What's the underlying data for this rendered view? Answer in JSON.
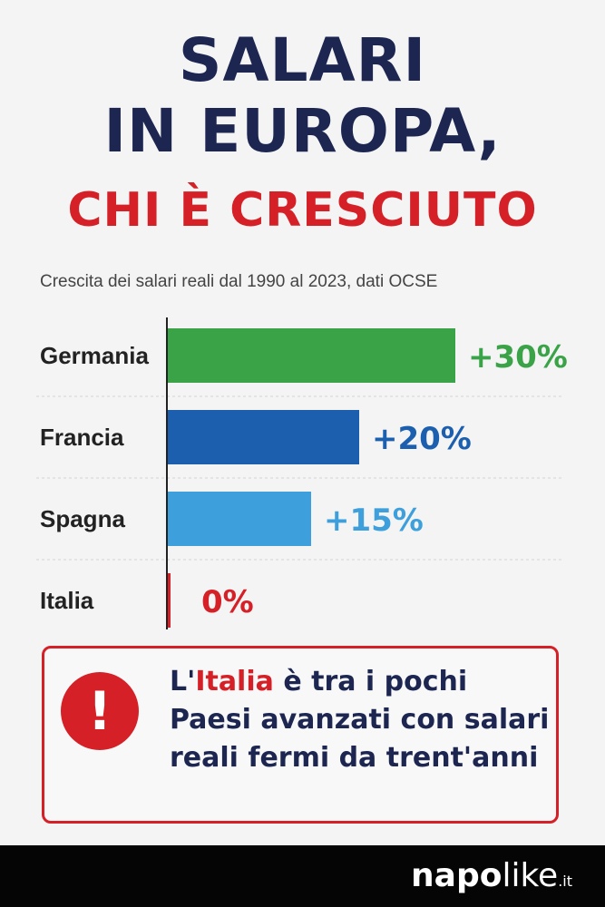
{
  "title": {
    "line1": "SALARI",
    "line2": "IN EUROPA,",
    "line3": "CHI È CRESCIUTO"
  },
  "subtitle": "Crescita dei salari reali dal 1990 al 2023, dati OCSE",
  "chart_data": {
    "type": "bar",
    "orientation": "horizontal",
    "categories": [
      "Germania",
      "Francia",
      "Spagna",
      "Italia"
    ],
    "values": [
      30,
      20,
      15,
      0
    ],
    "value_labels": [
      "+30%",
      "+20%",
      "+15%",
      "0%"
    ],
    "colors": [
      "#3aa348",
      "#1b5fae",
      "#3d9fdb",
      "#d42026"
    ],
    "xlim": [
      0,
      30
    ],
    "unit": "%",
    "grid": false
  },
  "alert": {
    "icon": "exclamation-icon",
    "text_pre": "L'",
    "text_highlight": "Italia",
    "text_post": " è tra i pochi Paesi avanzati con salari reali fermi da trent'anni"
  },
  "footer": {
    "logo_part1": "napo",
    "logo_part2": "like",
    "logo_part3": ".it"
  },
  "colors": {
    "title_navy": "#1c2651",
    "accent_red": "#d42026",
    "footer_bg": "#050505"
  }
}
